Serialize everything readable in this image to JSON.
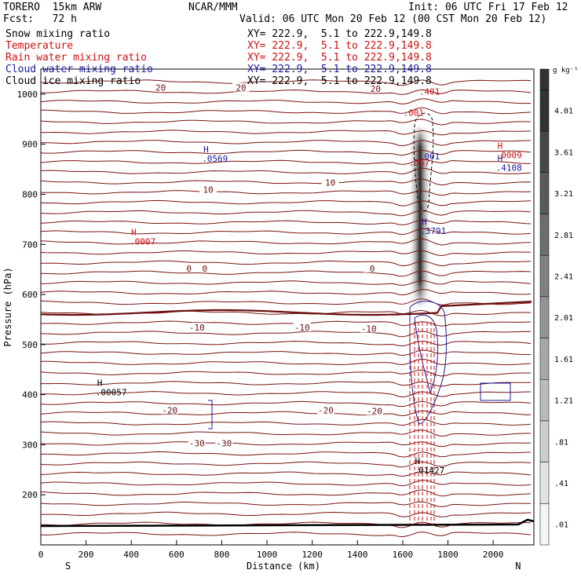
{
  "header": {
    "model": "TORERO  15km ARW",
    "center": "NCAR/MMM",
    "init": "Init: 06 UTC Fri 17 Feb 12",
    "fcst": "Fcst:   72 h",
    "valid": "Valid: 06 UTC Mon 20 Feb 12 (00 CST Mon 20 Feb 12)"
  },
  "fields": [
    {
      "name": "Snow mixing ratio",
      "xy": "XY= 222.9,  5.1 to 222.9,149.8",
      "color": "#000000"
    },
    {
      "name": "Temperature",
      "xy": "XY= 222.9,  5.1 to 222.9,149.8",
      "color": "#cc1111"
    },
    {
      "name": "Rain water mixing ratio",
      "xy": "XY= 222.9,  5.1 to 222.9,149.8",
      "color": "#cc1111"
    },
    {
      "name": "Cloud water mixing ratio",
      "xy": "XY= 222.9,  5.1 to 222.9,149.8",
      "color": "#1a1aa0"
    },
    {
      "name": "Cloud ice mixing ratio",
      "xy": "XY= 222.9,  5.1 to 222.9,149.8",
      "color": "#000000"
    }
  ],
  "chart_data": {
    "type": "cross-section",
    "xlabel": "Distance (km)",
    "ylabel": "Pressure (hPa)",
    "xlim": [
      0,
      2180
    ],
    "ylim": [
      1050,
      100
    ],
    "x_ticks": [
      0,
      200,
      400,
      600,
      800,
      1000,
      1200,
      1400,
      1600,
      1800,
      2000
    ],
    "y_ticks": [
      200,
      300,
      400,
      500,
      600,
      700,
      800,
      900,
      1000
    ],
    "end_labels": {
      "left": "S",
      "right": "N"
    },
    "colorbar": {
      "unit": "g kg⁻¹",
      "labels": [
        ".01",
        ".41",
        ".81",
        "1.21",
        "1.61",
        "2.01",
        "2.41",
        "2.81",
        "3.21",
        "3.61",
        "4.01"
      ]
    },
    "temperature_labels": [
      {
        "text": "-30",
        "x": 690,
        "p": 300
      },
      {
        "text": "-30",
        "x": 810,
        "p": 300
      },
      {
        "text": "-20",
        "x": 570,
        "p": 366
      },
      {
        "text": "-20",
        "x": 1260,
        "p": 366
      },
      {
        "text": "-20",
        "x": 1475,
        "p": 364
      },
      {
        "text": "-10",
        "x": 690,
        "p": 531
      },
      {
        "text": "-10",
        "x": 1155,
        "p": 531
      },
      {
        "text": "-10",
        "x": 1450,
        "p": 529
      },
      {
        "text": "0",
        "x": 655,
        "p": 649
      },
      {
        "text": "0",
        "x": 725,
        "p": 649
      },
      {
        "text": "0",
        "x": 1465,
        "p": 649
      },
      {
        "text": "10",
        "x": 740,
        "p": 806
      },
      {
        "text": "10",
        "x": 1280,
        "p": 820
      },
      {
        "text": "20",
        "x": 530,
        "p": 1010
      },
      {
        "text": "20",
        "x": 885,
        "p": 1010
      },
      {
        "text": "20",
        "x": 1480,
        "p": 1008
      }
    ],
    "maxima": [
      {
        "mark": "H",
        "value": ".00057",
        "x": 270,
        "p": 402,
        "color": "#000000"
      },
      {
        "mark": "H",
        "value": ".0007",
        "x": 420,
        "p": 703,
        "color": "#cc1111"
      },
      {
        "mark": "H",
        "value": ".0569",
        "x": 740,
        "p": 868,
        "color": "#1a1aa0"
      },
      {
        "mark": "H",
        "value": ".01427",
        "x": 1675,
        "p": 246,
        "color": "#000000"
      },
      {
        "mark": "H",
        "value": ".3791",
        "x": 1705,
        "p": 724,
        "color": "#1a1aa0"
      },
      {
        "mark": "H",
        "value": ".4108",
        "x": 2040,
        "p": 850,
        "color": "#1a1aa0"
      },
      {
        "mark": "H",
        "value": ".0009",
        "x": 2040,
        "p": 875,
        "color": "#cc1111"
      },
      {
        "mark": "",
        "value": ".001",
        "x": 1700,
        "p": 873,
        "color": "#1a1aa0"
      },
      {
        "mark": "",
        "value": ".557",
        "x": 1655,
        "p": 860,
        "color": "#cc1111"
      },
      {
        "mark": "",
        "value": ".001",
        "x": 1630,
        "p": 960,
        "color": "#cc1111"
      },
      {
        "mark": "",
        "value": ".401",
        "x": 1700,
        "p": 1002,
        "color": "#cc1111"
      }
    ]
  }
}
